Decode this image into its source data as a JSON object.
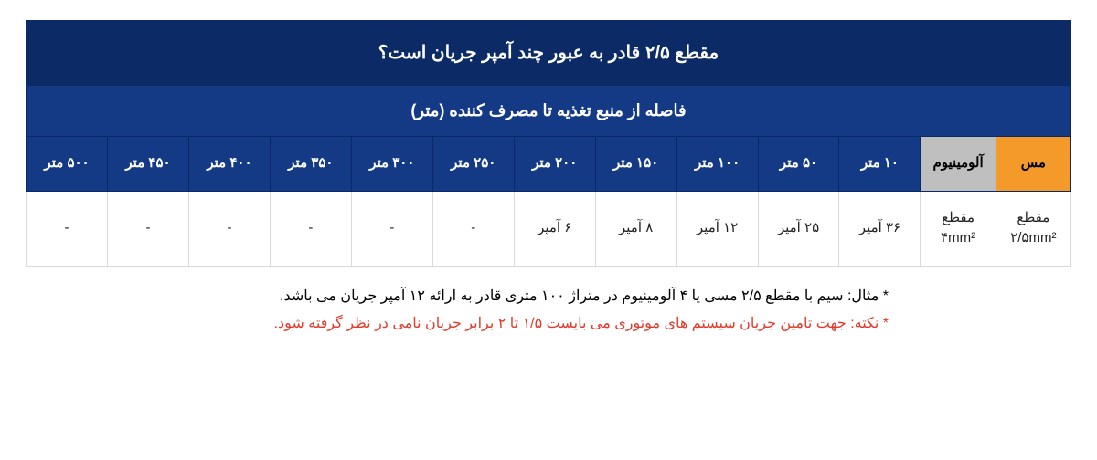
{
  "table": {
    "title": "مقطع ۲/۵ قادر به عبور چند آمپر جریان است؟",
    "subheader": "فاصله از منبع تغذیه تا مصرف کننده  (متر)",
    "material_copper": "مس",
    "material_aluminum": "آلومینیوم",
    "distances": [
      "۱۰ متر",
      "۵۰ متر",
      "۱۰۰ متر",
      "۱۵۰ متر",
      "۲۰۰ متر",
      "۲۵۰ متر",
      "۳۰۰ متر",
      "۳۵۰ متر",
      "۴۰۰ متر",
      "۴۵۰ متر",
      "۵۰۰ متر"
    ],
    "row": {
      "copper_section": "مقطع<br>۲/۵mm²",
      "aluminum_section": "مقطع<br>۴mm²",
      "values": [
        "۳۶ آمپر",
        "۲۵ آمپر",
        "۱۲ آمپر",
        "۸ آمپر",
        "۶ آمپر",
        "-",
        "-",
        "-",
        "-",
        "-",
        "-"
      ]
    },
    "colors": {
      "header_bg": "#0c2b66",
      "distance_bg": "#143a86",
      "copper_bg": "#f39a2a",
      "aluminum_bg": "#bfbfbf",
      "border": "#d9d9d9",
      "text_header": "#ffffff",
      "text_body": "#222222"
    },
    "column_widths": {
      "material": "7.2%",
      "distance": "7.78%"
    }
  },
  "notes": {
    "line1": "* مثال: سیم با مقطع ۲/۵ مسی یا ۴ آلومینیوم در متراژ ۱۰۰ متری قادر به ارائه ۱۲ آمپر جریان می باشد.",
    "line2": "* نکته: جهت تامین جریان سیستم های موتوری می بایست ۱/۵ تا ۲ برابر جریان نامی در نظر گرفته شود."
  }
}
